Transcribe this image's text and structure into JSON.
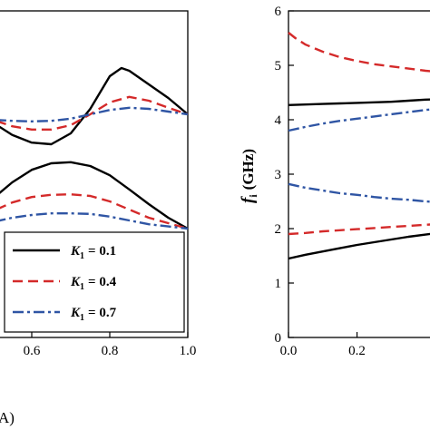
{
  "chart_data": [
    {
      "type": "line",
      "panel": "left",
      "xlabel": "",
      "ylabel": "",
      "xlim": [
        0.4,
        1.0
      ],
      "ylim": [
        0,
        6
      ],
      "x_ticks": [
        "0.6",
        "0.8",
        "1.0"
      ],
      "panel_label": "A)",
      "legend_position": "bottom-right",
      "series": [
        {
          "name": "K1 = 0.1",
          "symbol": "K",
          "subscript": "1",
          "value_text": "= 0.1",
          "color": "#000000",
          "dash": "solid",
          "x": [
            0.4,
            0.45,
            0.5,
            0.55,
            0.6,
            0.65,
            0.7,
            0.75,
            0.8,
            0.83,
            0.85,
            0.9,
            0.95,
            1.0
          ],
          "y": [
            4.65,
            4.3,
            3.95,
            3.72,
            3.58,
            3.55,
            3.75,
            4.2,
            4.8,
            4.95,
            4.9,
            4.65,
            4.4,
            4.1
          ]
        },
        {
          "name": "K1 = 0.4",
          "symbol": "K",
          "subscript": "1",
          "value_text": "= 0.4",
          "color": "#d42a2a",
          "dash": "dash",
          "x": [
            0.4,
            0.45,
            0.5,
            0.55,
            0.6,
            0.65,
            0.7,
            0.75,
            0.8,
            0.85,
            0.9,
            0.95,
            1.0
          ],
          "y": [
            4.3,
            4.15,
            4.0,
            3.88,
            3.82,
            3.82,
            3.9,
            4.1,
            4.32,
            4.42,
            4.35,
            4.22,
            4.1
          ]
        },
        {
          "name": "K1 = 0.7",
          "symbol": "K",
          "subscript": "1",
          "value_text": "= 0.7",
          "color": "#2f55a4",
          "dash": "dashdot",
          "x": [
            0.4,
            0.45,
            0.5,
            0.55,
            0.6,
            0.65,
            0.7,
            0.75,
            0.8,
            0.85,
            0.9,
            0.95,
            1.0
          ],
          "y": [
            4.05,
            4.03,
            4.0,
            3.98,
            3.97,
            3.98,
            4.02,
            4.1,
            4.18,
            4.22,
            4.2,
            4.15,
            4.1
          ]
        },
        {
          "name": "",
          "color": "#000000",
          "dash": "solid",
          "x": [
            0.4,
            0.45,
            0.5,
            0.55,
            0.6,
            0.65,
            0.7,
            0.75,
            0.8,
            0.85,
            0.9,
            0.95,
            1.0
          ],
          "y": [
            2.05,
            2.25,
            2.55,
            2.85,
            3.08,
            3.2,
            3.22,
            3.15,
            2.98,
            2.72,
            2.45,
            2.2,
            2.0
          ]
        },
        {
          "name": "",
          "color": "#d42a2a",
          "dash": "dash",
          "x": [
            0.4,
            0.45,
            0.5,
            0.55,
            0.6,
            0.65,
            0.7,
            0.75,
            0.8,
            0.85,
            0.9,
            0.95,
            1.0
          ],
          "y": [
            2.05,
            2.15,
            2.32,
            2.48,
            2.58,
            2.62,
            2.63,
            2.6,
            2.5,
            2.35,
            2.2,
            2.1,
            2.0
          ]
        },
        {
          "name": "",
          "color": "#2f55a4",
          "dash": "dashdot",
          "x": [
            0.4,
            0.45,
            0.5,
            0.55,
            0.6,
            0.65,
            0.7,
            0.75,
            0.8,
            0.85,
            0.9,
            0.95,
            1.0
          ],
          "y": [
            2.02,
            2.05,
            2.12,
            2.2,
            2.25,
            2.28,
            2.28,
            2.27,
            2.22,
            2.15,
            2.08,
            2.04,
            2.0
          ]
        }
      ]
    },
    {
      "type": "line",
      "panel": "right",
      "xlabel": "",
      "ylabel": "fi (GHz)",
      "ylabel_symbol": "f",
      "ylabel_subscript": "i",
      "ylabel_unit": "(GHz)",
      "xlim": [
        0.0,
        0.45
      ],
      "ylim": [
        0,
        6
      ],
      "y_ticks": [
        "0",
        "1",
        "2",
        "3",
        "4",
        "5",
        "6"
      ],
      "x_ticks": [
        "0.0",
        "0.2"
      ],
      "series": [
        {
          "name": "",
          "color": "#d42a2a",
          "dash": "dash",
          "x": [
            0.0,
            0.02,
            0.05,
            0.1,
            0.15,
            0.2,
            0.25,
            0.3,
            0.35,
            0.4,
            0.45
          ],
          "y": [
            5.6,
            5.5,
            5.38,
            5.25,
            5.15,
            5.08,
            5.02,
            4.98,
            4.94,
            4.9,
            4.87
          ]
        },
        {
          "name": "",
          "color": "#000000",
          "dash": "solid",
          "x": [
            0.0,
            0.05,
            0.1,
            0.15,
            0.2,
            0.25,
            0.3,
            0.35,
            0.4,
            0.45
          ],
          "y": [
            4.27,
            4.28,
            4.29,
            4.3,
            4.31,
            4.32,
            4.33,
            4.35,
            4.37,
            4.38
          ]
        },
        {
          "name": "",
          "color": "#2f55a4",
          "dash": "dashdot",
          "x": [
            0.0,
            0.05,
            0.1,
            0.15,
            0.2,
            0.25,
            0.3,
            0.35,
            0.4,
            0.45
          ],
          "y": [
            3.8,
            3.87,
            3.93,
            3.98,
            4.02,
            4.06,
            4.1,
            4.14,
            4.18,
            4.21
          ]
        },
        {
          "name": "",
          "color": "#2f55a4",
          "dash": "dashdot",
          "x": [
            0.0,
            0.05,
            0.1,
            0.15,
            0.2,
            0.25,
            0.3,
            0.35,
            0.4,
            0.45
          ],
          "y": [
            2.82,
            2.75,
            2.7,
            2.65,
            2.62,
            2.58,
            2.55,
            2.53,
            2.5,
            2.48
          ]
        },
        {
          "name": "",
          "color": "#d42a2a",
          "dash": "dash",
          "x": [
            0.0,
            0.05,
            0.1,
            0.15,
            0.2,
            0.25,
            0.3,
            0.35,
            0.4,
            0.45
          ],
          "y": [
            1.9,
            1.92,
            1.95,
            1.97,
            1.99,
            2.01,
            2.03,
            2.05,
            2.07,
            2.09
          ]
        },
        {
          "name": "",
          "color": "#000000",
          "dash": "solid",
          "x": [
            0.0,
            0.05,
            0.1,
            0.15,
            0.2,
            0.25,
            0.3,
            0.35,
            0.4,
            0.45
          ],
          "y": [
            1.45,
            1.52,
            1.58,
            1.64,
            1.7,
            1.75,
            1.8,
            1.85,
            1.89,
            1.93
          ]
        }
      ]
    }
  ]
}
